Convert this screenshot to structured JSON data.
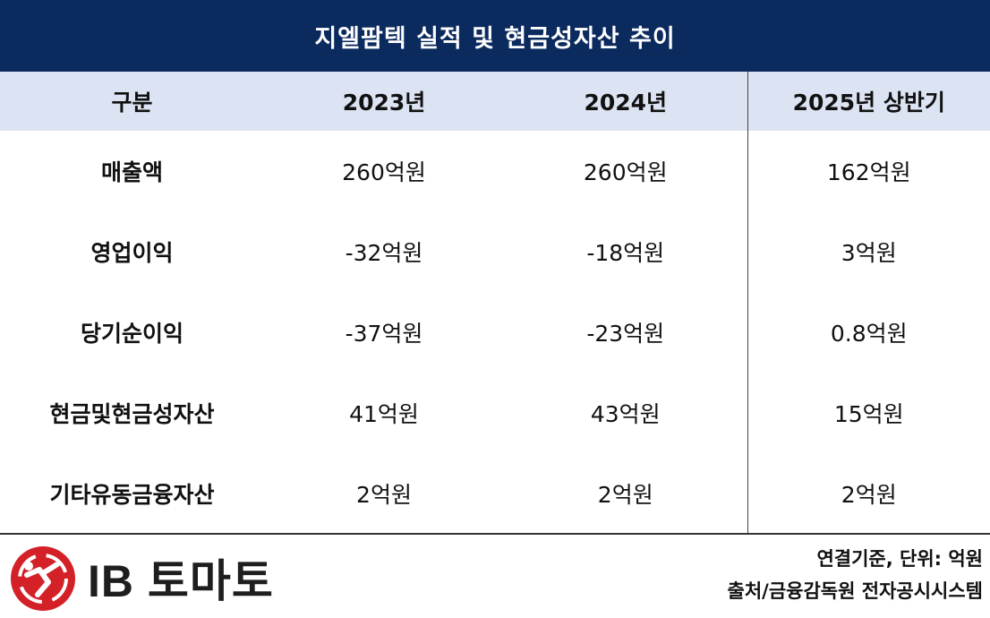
{
  "title": "지엘팜텍 실적 및 현금성자산 추이",
  "table": {
    "headers": [
      "구분",
      "2023년",
      "2024년",
      "2025년 상반기"
    ],
    "rows": [
      {
        "label": "매출액",
        "values": [
          "260억원",
          "260억원",
          "162억원"
        ]
      },
      {
        "label": "영업이익",
        "values": [
          "-32억원",
          "-18억원",
          "3억원"
        ]
      },
      {
        "label": "당기순이익",
        "values": [
          "-37억원",
          "-23억원",
          "0.8억원"
        ]
      },
      {
        "label": "현금및현금성자산",
        "values": [
          "41억원",
          "43억원",
          "15억원"
        ]
      },
      {
        "label": "기타유동금융자산",
        "values": [
          "2억원",
          "2억원",
          "2억원"
        ]
      }
    ]
  },
  "footer": {
    "logo_text": "IB 토마토",
    "note_basis": "연결기준, 단위: 억원",
    "note_source": "출처/금융감독원 전자공시시스템"
  },
  "colors": {
    "title_bg": "#0b2a5e",
    "header_bg": "#dce3f2",
    "logo_red": "#d42027"
  }
}
